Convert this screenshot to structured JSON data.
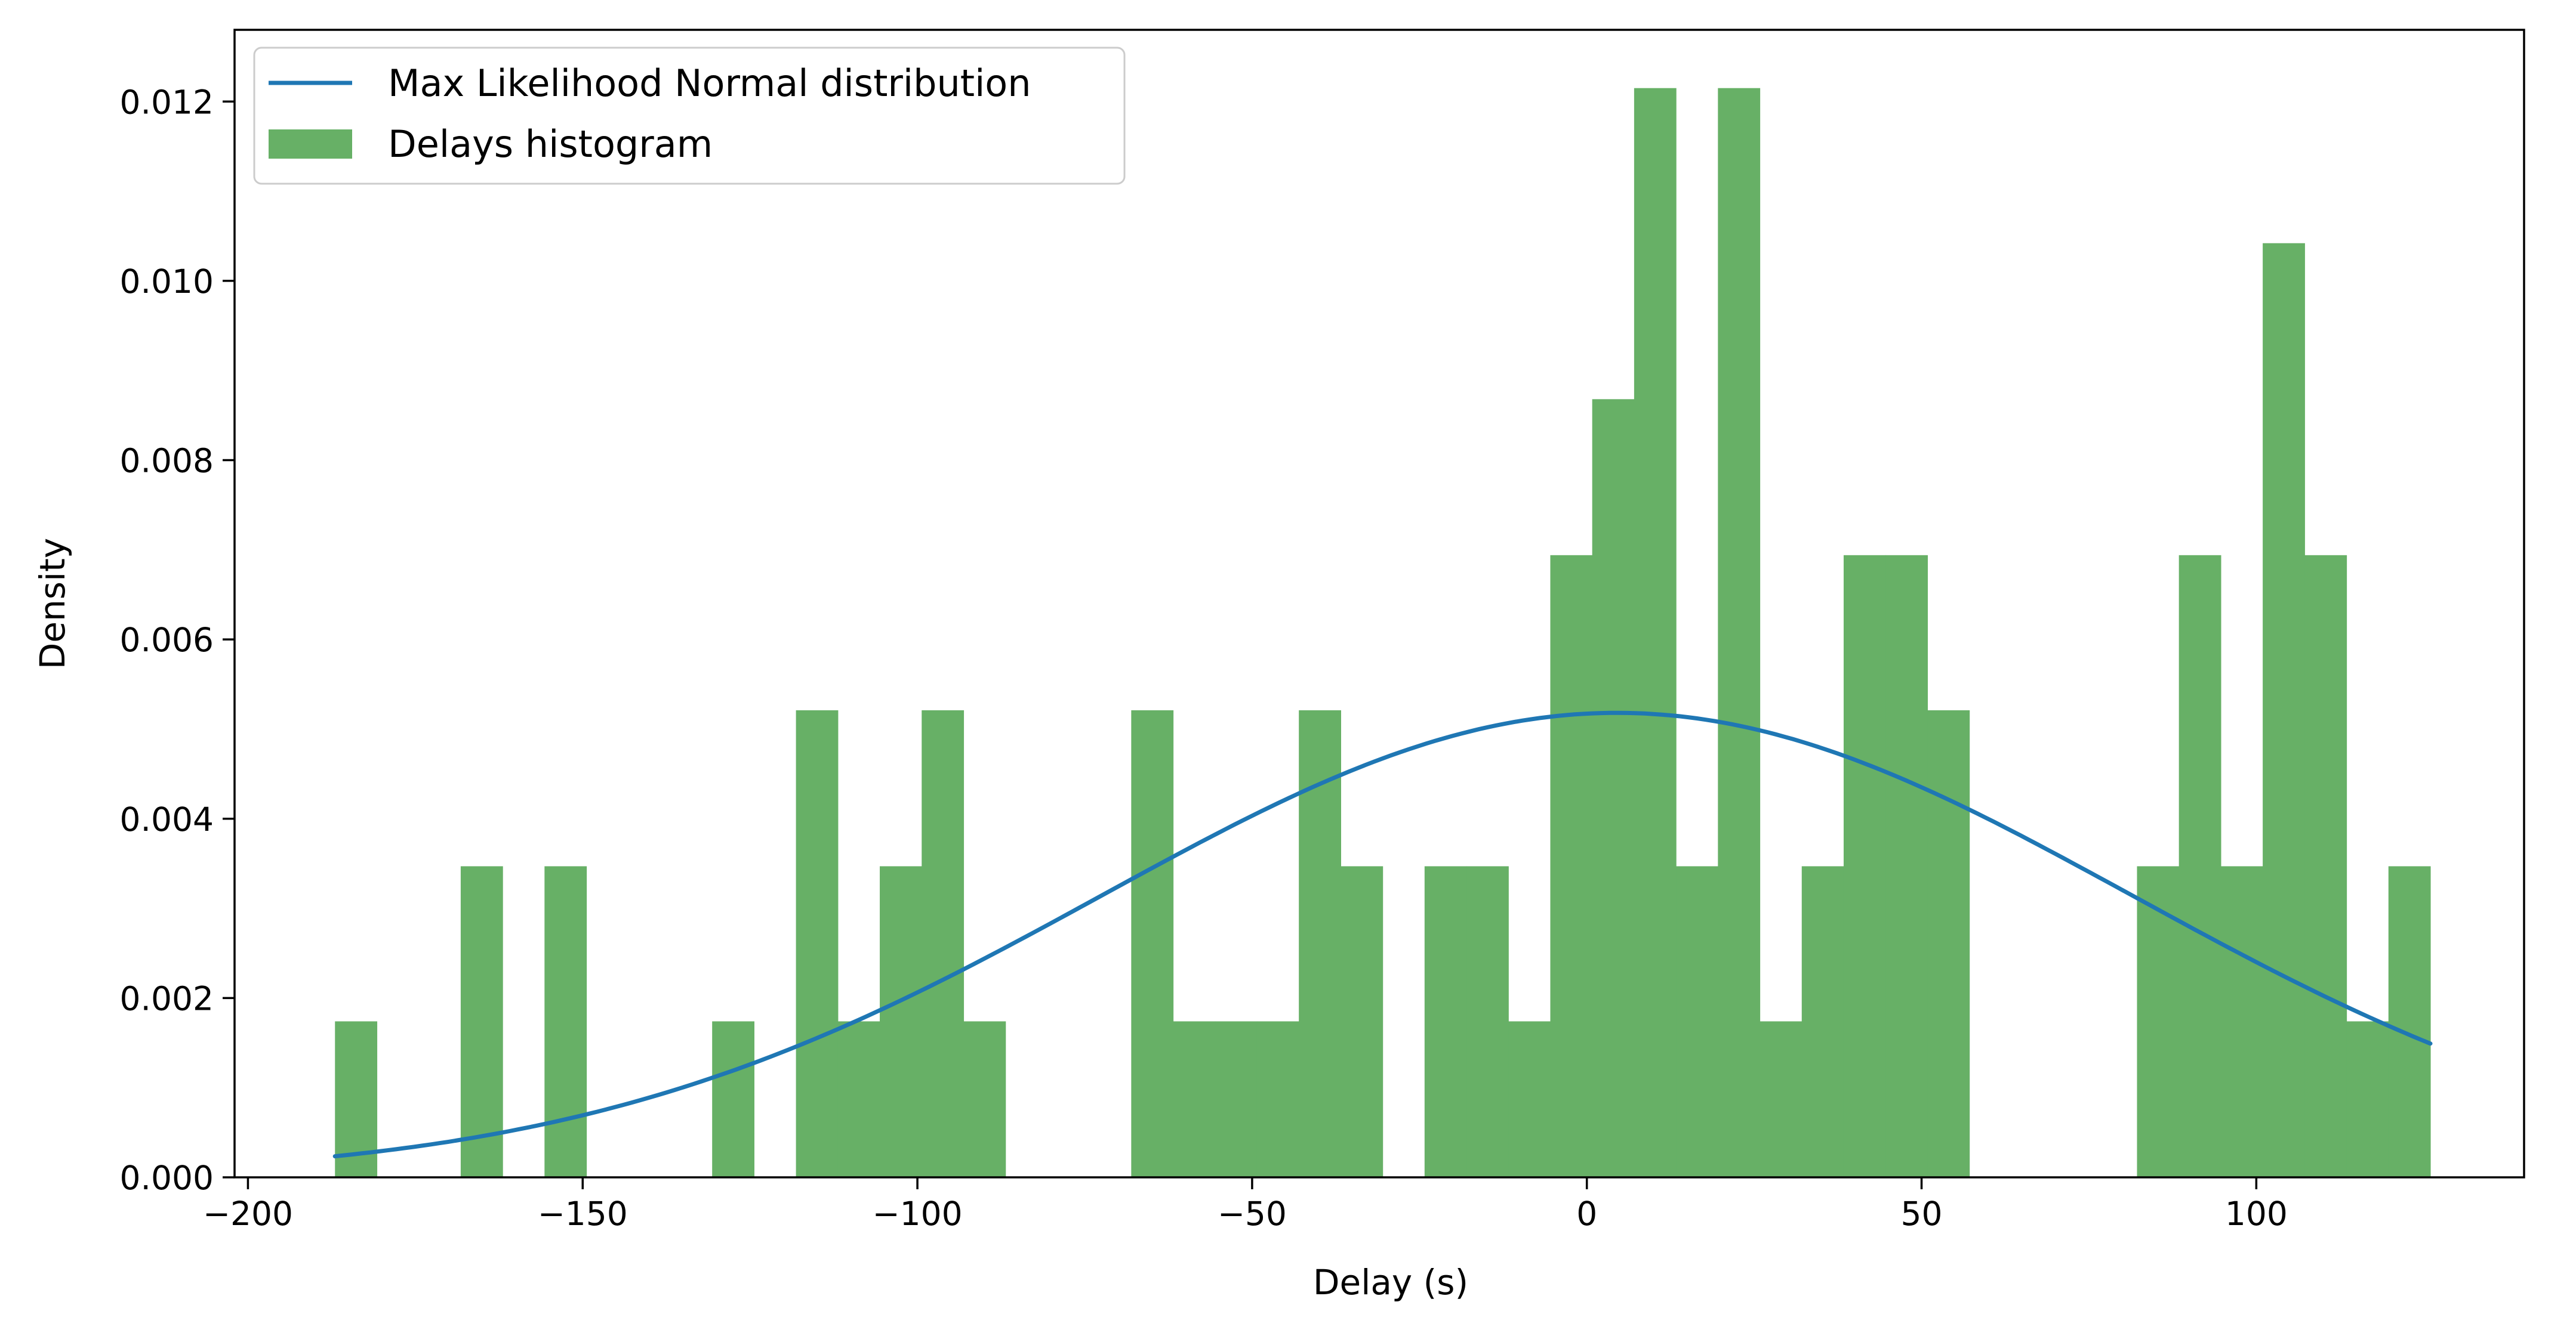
{
  "chart_data": {
    "type": "bar",
    "subtype": "histogram-with-curve",
    "xlabel": "Delay (s)",
    "ylabel": "Density",
    "xlim": [
      -202,
      140
    ],
    "ylim": [
      0,
      0.0128
    ],
    "x_ticks": [
      {
        "value": -200,
        "label": "−200"
      },
      {
        "value": -150,
        "label": "−150"
      },
      {
        "value": -100,
        "label": "−100"
      },
      {
        "value": -50,
        "label": "−50"
      },
      {
        "value": 0,
        "label": "0"
      },
      {
        "value": 50,
        "label": "50"
      },
      {
        "value": 100,
        "label": "100"
      }
    ],
    "y_ticks": [
      {
        "value": 0.0,
        "label": "0.000"
      },
      {
        "value": 0.002,
        "label": "0.002"
      },
      {
        "value": 0.004,
        "label": "0.004"
      },
      {
        "value": 0.006,
        "label": "0.006"
      },
      {
        "value": 0.008,
        "label": "0.008"
      },
      {
        "value": 0.01,
        "label": "0.010"
      },
      {
        "value": 0.012,
        "label": "0.012"
      }
    ],
    "grid": false,
    "legend_position": "top-left",
    "colors": {
      "histogram": "#67b066",
      "curve": "#1f77b4"
    },
    "histogram": {
      "name": "Delays histogram",
      "bin_edges": [
        -187,
        -180.74,
        -174.48,
        -168.22,
        -161.96,
        -155.7,
        -149.44,
        -143.18,
        -136.92,
        -130.66,
        -124.4,
        -118.14,
        -111.88,
        -105.62,
        -99.36,
        -93.1,
        -86.84,
        -80.58,
        -74.32,
        -68.06,
        -61.8,
        -55.54,
        -49.28,
        -43.02,
        -36.76,
        -30.5,
        -24.24,
        -17.98,
        -11.72,
        -5.46,
        0.8,
        7.06,
        13.32,
        19.58,
        25.84,
        32.1,
        38.36,
        44.62,
        50.88,
        57.14,
        63.4,
        69.66,
        75.92,
        82.18,
        88.44,
        94.7,
        100.96,
        107.22,
        113.48,
        119.74,
        126.0
      ],
      "densities": [
        0.00174,
        0,
        0,
        0.00347,
        0,
        0.00347,
        0,
        0,
        0,
        0.00174,
        0,
        0.00521,
        0.00174,
        0.00347,
        0.00521,
        0.00174,
        0,
        0,
        0,
        0.00521,
        0.00174,
        0.00174,
        0.00174,
        0.00521,
        0.00347,
        0,
        0.00347,
        0.00347,
        0.00174,
        0.00694,
        0.00868,
        0.01215,
        0.00347,
        0.01215,
        0.00174,
        0.00347,
        0.00694,
        0.00694,
        0.00521,
        0,
        0,
        0,
        0,
        0.00347,
        0.00694,
        0.00347,
        0.01042,
        0.00694,
        0.00174,
        0.00347
      ]
    },
    "series": [
      {
        "name": "Max Likelihood Normal distribution",
        "distribution": "normal",
        "mean": 4.5,
        "std": 77,
        "x_range": [
          -187,
          126
        ]
      }
    ],
    "legend": [
      {
        "label": "Max Likelihood Normal distribution",
        "kind": "line"
      },
      {
        "label": "Delays histogram",
        "kind": "patch"
      }
    ]
  }
}
